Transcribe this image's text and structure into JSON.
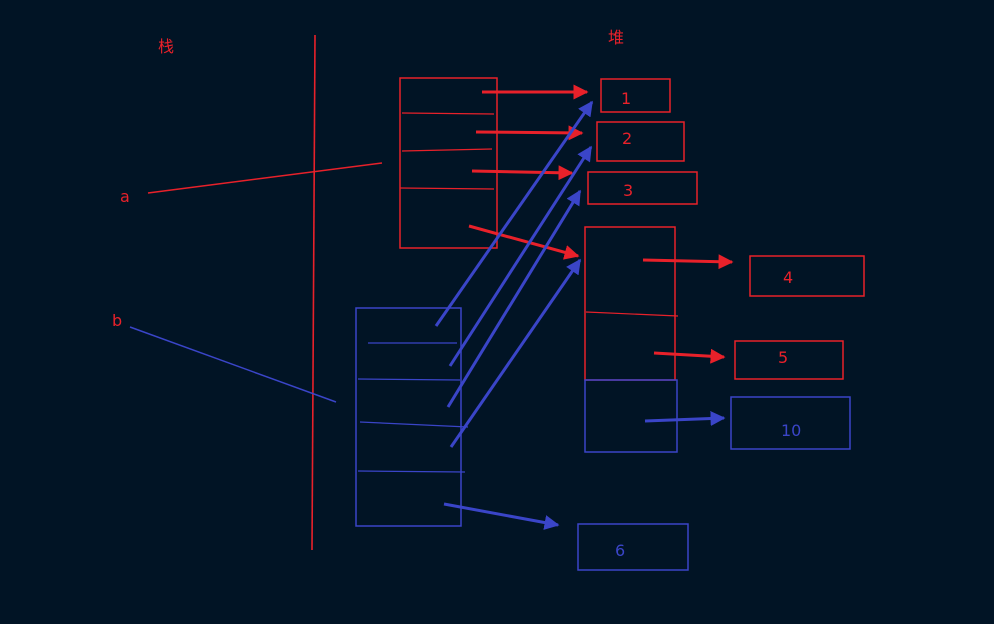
{
  "colors": {
    "background": "#011425",
    "red": "#e8212a",
    "blue": "#3a45c8"
  },
  "labels": {
    "stack": "栈",
    "heap": "堆",
    "var_a": "a",
    "var_b": "b"
  },
  "heap_values": {
    "v1": "1",
    "v2": "2",
    "v3": "3",
    "v4": "4",
    "v5": "5",
    "v6": "6",
    "v10": "10"
  }
}
